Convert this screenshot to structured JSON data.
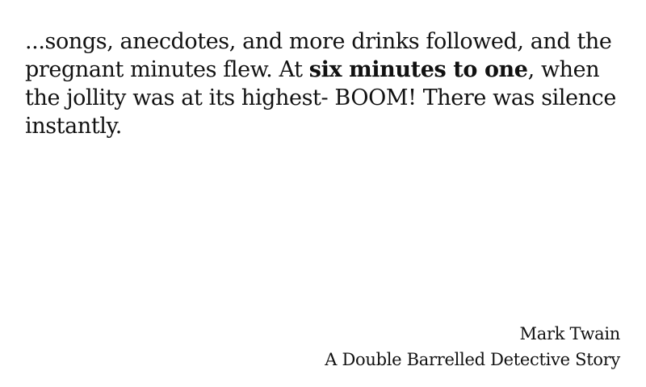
{
  "quote": {
    "before": "...songs, anecdotes, and more drinks followed, and the pregnant minutes flew. At ",
    "emphasis": "six minutes to one",
    "after": ", when the jollity was at its highest- BOOM! There was silence instantly."
  },
  "attribution": {
    "author": "Mark Twain",
    "work": "A Double Barrelled Detective Story"
  }
}
